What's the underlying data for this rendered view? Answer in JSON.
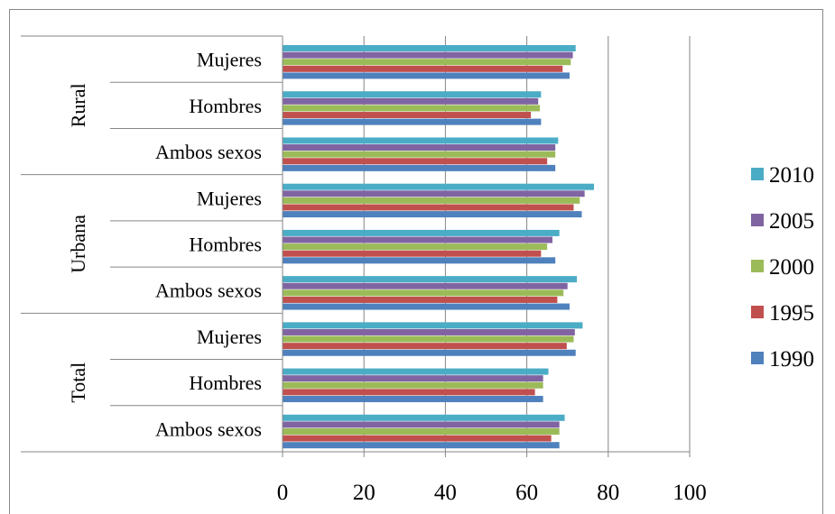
{
  "chart_data": {
    "type": "bar",
    "orientation": "horizontal",
    "groups": [
      {
        "label": "Total",
        "subcategories": [
          "Ambos sexos",
          "Hombres",
          "Mujeres"
        ]
      },
      {
        "label": "Urbana",
        "subcategories": [
          "Ambos sexos",
          "Hombres",
          "Mujeres"
        ]
      },
      {
        "label": "Rural",
        "subcategories": [
          "Ambos sexos",
          "Hombres",
          "Mujeres"
        ]
      }
    ],
    "categories": [
      "Total / Ambos sexos",
      "Total / Hombres",
      "Total / Mujeres",
      "Urbana / Ambos sexos",
      "Urbana / Hombres",
      "Urbana / Mujeres",
      "Rural / Ambos sexos",
      "Rural / Hombres",
      "Rural / Mujeres"
    ],
    "series": [
      {
        "name": "1990",
        "color": "#4F81BD",
        "values": [
          68,
          64,
          72,
          70.5,
          67,
          73.5,
          67,
          63.5,
          70.5
        ]
      },
      {
        "name": "1995",
        "color": "#C0504D",
        "values": [
          66,
          62,
          69.8,
          67.5,
          63.5,
          71.5,
          65,
          61,
          68.8
        ]
      },
      {
        "name": "2000",
        "color": "#9BBB59",
        "values": [
          68,
          64,
          71.5,
          69,
          65,
          73,
          67,
          63.2,
          70.8
        ]
      },
      {
        "name": "2005",
        "color": "#8064A2",
        "values": [
          68,
          64,
          71.8,
          70,
          66.3,
          74.2,
          67,
          62.8,
          71.3
        ]
      },
      {
        "name": "2010",
        "color": "#4BACC6",
        "values": [
          69.3,
          65.3,
          73.7,
          72.3,
          68,
          76.5,
          67.7,
          63.5,
          72
        ]
      }
    ],
    "xlim": [
      0,
      100
    ],
    "xticks": [
      0,
      20,
      40,
      60,
      80,
      100
    ],
    "grid": true,
    "legend_position": "right",
    "legend_order": [
      "2010",
      "2005",
      "2000",
      "1995",
      "1990"
    ]
  }
}
